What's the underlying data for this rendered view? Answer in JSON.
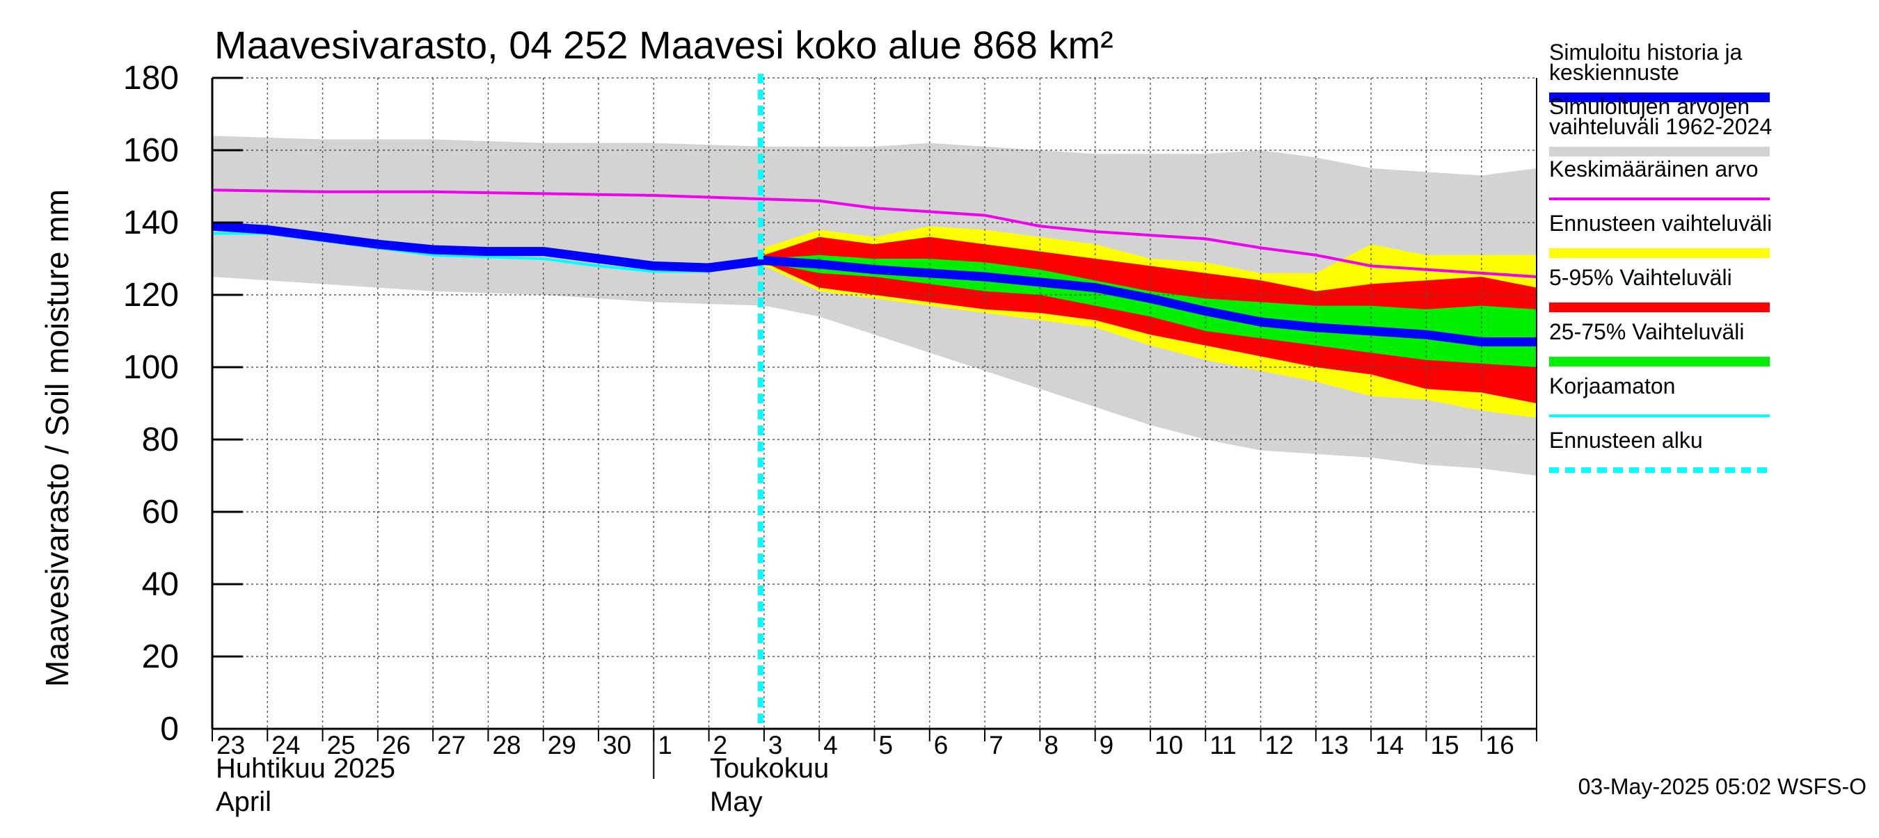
{
  "chart_data": {
    "type": "area",
    "title": "Maavesivarasto, 04 252 Maavesi koko alue 868 km²",
    "ylabel": "Maavesivarasto / Soil moisture   mm",
    "ylim": [
      0,
      180
    ],
    "yticks": [
      0,
      20,
      40,
      60,
      80,
      100,
      120,
      140,
      160,
      180
    ],
    "xlim": [
      0,
      24
    ],
    "x_day_labels": [
      "23",
      "24",
      "25",
      "26",
      "27",
      "28",
      "29",
      "30",
      "1",
      "2",
      "3",
      "4",
      "5",
      "6",
      "7",
      "8",
      "9",
      "10",
      "11",
      "12",
      "13",
      "14",
      "15",
      "16"
    ],
    "month_labels": [
      {
        "fi": "Huhtikuu  2025",
        "en": "April",
        "start_day_index": 0
      },
      {
        "fi": "Toukokuu",
        "en": "May",
        "start_day_index": 8
      }
    ],
    "forecast_start_x": 10,
    "footer": "03-May-2025 05:02 WSFS-O",
    "series": {
      "history_range": {
        "name": "Simuloitujen arvojen vaihteluväli 1962-2024",
        "color": "#d3d3d3",
        "x": [
          0,
          2,
          4,
          6,
          8,
          10,
          11,
          12,
          13,
          14,
          15,
          16,
          17,
          18,
          19,
          20,
          21,
          22,
          23,
          24
        ],
        "upper": [
          164,
          163,
          163,
          162,
          162,
          161,
          161,
          161,
          162,
          161,
          160,
          159,
          159,
          159,
          160,
          158,
          155,
          154,
          153,
          155
        ],
        "lower": [
          125,
          123,
          121,
          120,
          118,
          117,
          114,
          109,
          104,
          99,
          94,
          89,
          84,
          80,
          77,
          76,
          75,
          73,
          72,
          70
        ]
      },
      "forecast_range": {
        "name": "Ennusteen vaihteluväli",
        "color": "#ffff00",
        "x": [
          10,
          11,
          12,
          13,
          14,
          15,
          16,
          17,
          18,
          19,
          20,
          21,
          22,
          23,
          24
        ],
        "upper": [
          133,
          138,
          136,
          139,
          138,
          136,
          134,
          130,
          129,
          126,
          126,
          134,
          131,
          131,
          131
        ],
        "lower": [
          128,
          121,
          119,
          117,
          115,
          113,
          111,
          106,
          102,
          99,
          96,
          92,
          91,
          88,
          86
        ]
      },
      "p5_95": {
        "name": "5-95% Vaihteluväli",
        "color": "#ff0000",
        "x": [
          10,
          11,
          12,
          13,
          14,
          15,
          16,
          17,
          18,
          19,
          20,
          21,
          22,
          23,
          24
        ],
        "upper": [
          131,
          136,
          134,
          136,
          134,
          132,
          130,
          128,
          126,
          124,
          121,
          123,
          124,
          125,
          122
        ],
        "lower": [
          129,
          122,
          120,
          118,
          116,
          115,
          113,
          109,
          106,
          103,
          100,
          98,
          94,
          93,
          90
        ]
      },
      "p25_75": {
        "name": "25-75% Vaihteluväli",
        "color": "#00ee00",
        "x": [
          10,
          11,
          12,
          13,
          14,
          15,
          16,
          17,
          18,
          19,
          20,
          21,
          22,
          23,
          24
        ],
        "upper": [
          130,
          131,
          130,
          130,
          129,
          127,
          124,
          121,
          119,
          118,
          117,
          117,
          116,
          117,
          116
        ],
        "lower": [
          129,
          126,
          125,
          123,
          121,
          120,
          117,
          114,
          110,
          108,
          106,
          104,
          102,
          101,
          100
        ]
      },
      "mean": {
        "name": "Keskimääräinen arvo",
        "color": "#ee00ee",
        "x": [
          0,
          2,
          4,
          6,
          8,
          10,
          11,
          12,
          13,
          14,
          15,
          16,
          17,
          18,
          19,
          20,
          21,
          22,
          23,
          24
        ],
        "values": [
          149,
          148.5,
          148.5,
          148,
          147.5,
          146.5,
          146,
          144,
          143,
          142,
          139,
          137.5,
          136.5,
          135.5,
          133,
          131,
          128,
          127,
          126,
          125
        ]
      },
      "uncorrected": {
        "name": "Korjaamaton",
        "color": "#00ffff",
        "x": [
          0,
          1,
          2,
          3,
          4,
          5,
          6,
          7,
          8,
          9,
          10
        ],
        "values": [
          137,
          137,
          135,
          133,
          131,
          130.5,
          130,
          128,
          126.5,
          126.5,
          129.5
        ]
      },
      "simulated": {
        "name": "Simuloitu historia ja keskiennuste",
        "color": "#0000ff",
        "x": [
          0,
          1,
          2,
          3,
          4,
          5,
          6,
          7,
          8,
          9,
          10,
          11,
          12,
          13,
          14,
          15,
          16,
          17,
          18,
          19,
          20,
          21,
          22,
          23,
          24
        ],
        "values": [
          139,
          138,
          136,
          134,
          132.5,
          132,
          132,
          130,
          128,
          127.5,
          129.5,
          128.5,
          127,
          126,
          125,
          123.5,
          122,
          119,
          115.5,
          112.5,
          111,
          110,
          109,
          107,
          107
        ]
      }
    },
    "legend": [
      {
        "label": "Simuloitu historia ja keskiennuste",
        "style": "thick",
        "color": "#0000ff"
      },
      {
        "label": "Simuloitujen arvojen vaihteluväli 1962-2024",
        "style": "thick",
        "color": "#d3d3d3"
      },
      {
        "label": "Keskimääräinen arvo",
        "style": "thin",
        "color": "#ee00ee"
      },
      {
        "label": "Ennusteen vaihteluväli",
        "style": "thick",
        "color": "#ffff00"
      },
      {
        "label": "5-95% Vaihteluväli",
        "style": "thick",
        "color": "#ff0000"
      },
      {
        "label": "25-75% Vaihteluväli",
        "style": "thick",
        "color": "#00ee00"
      },
      {
        "label": "Korjaamaton",
        "style": "thin",
        "color": "#00ffff"
      },
      {
        "label": "Ennusteen alku",
        "style": "dashed",
        "color": "#00ffff"
      }
    ]
  }
}
